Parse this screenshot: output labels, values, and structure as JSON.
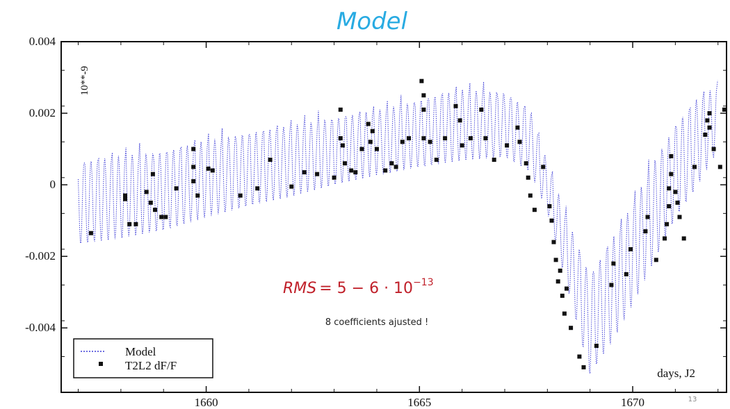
{
  "title": "Model",
  "page_number": "13",
  "chart_data": {
    "type": "line",
    "xlim": [
      1656.6,
      1672.2
    ],
    "ylim": [
      -0.0058,
      0.004
    ],
    "x_ticks": [
      1660,
      1665,
      1670
    ],
    "x_tick_labels": [
      "1660",
      "1665",
      "1670"
    ],
    "y_ticks": [
      0.004,
      0.002,
      0,
      -0.002,
      -0.004
    ],
    "y_tick_labels": [
      "0.004",
      "0.002",
      "0",
      "-0.002",
      "-0.004"
    ],
    "y_unit_annotation": "10**-9",
    "x_axis_annotation": "days, J2",
    "grid": false,
    "legend_position": "bottom-left",
    "series": [
      {
        "name": "Model",
        "style": "dotted line",
        "color": "#3b3bd6",
        "envelope_x": [
          1657.0,
          1658.0,
          1659.0,
          1660.0,
          1661.0,
          1662.0,
          1663.0,
          1664.0,
          1665.0,
          1666.0,
          1667.0,
          1667.6,
          1668.0,
          1668.5,
          1669.0,
          1669.5,
          1670.0,
          1670.5,
          1671.0,
          1671.5,
          1672.0
        ],
        "envelope_lower": [
          -0.0019,
          -0.0017,
          -0.0015,
          -0.0011,
          -0.0008,
          -0.0005,
          -0.0002,
          0.0001,
          0.0003,
          0.0005,
          0.0006,
          0.0002,
          -0.0009,
          -0.0032,
          -0.0056,
          -0.0047,
          -0.0036,
          -0.0024,
          -0.0012,
          -0.0003,
          0.0008
        ],
        "envelope_upper": [
          0.0009,
          0.0011,
          0.0012,
          0.0015,
          0.0017,
          0.0019,
          0.0021,
          0.0023,
          0.0026,
          0.0029,
          0.0028,
          0.0023,
          0.0008,
          -0.0008,
          -0.0022,
          -0.0012,
          -0.0002,
          0.001,
          0.002,
          0.0027,
          0.003
        ]
      },
      {
        "name": "T2L2 dF/F",
        "style": "square markers",
        "color": "#111111",
        "points": [
          [
            1657.3,
            -0.00135
          ],
          [
            1658.1,
            -0.0003
          ],
          [
            1658.1,
            -0.0004
          ],
          [
            1658.2,
            -0.0011
          ],
          [
            1658.35,
            -0.0011
          ],
          [
            1658.6,
            -0.0002
          ],
          [
            1658.7,
            -0.0005
          ],
          [
            1658.75,
            0.0003
          ],
          [
            1658.8,
            -0.0007
          ],
          [
            1658.95,
            -0.0009
          ],
          [
            1659.05,
            -0.0009
          ],
          [
            1659.3,
            -0.0001
          ],
          [
            1659.7,
            0.0005
          ],
          [
            1659.7,
            0.001
          ],
          [
            1659.7,
            0.0001
          ],
          [
            1659.8,
            -0.0003
          ],
          [
            1660.05,
            0.00045
          ],
          [
            1660.15,
            0.0004
          ],
          [
            1660.8,
            -0.0003
          ],
          [
            1661.2,
            -0.0001
          ],
          [
            1661.5,
            0.0007
          ],
          [
            1662.0,
            -5e-05
          ],
          [
            1662.3,
            0.00035
          ],
          [
            1662.6,
            0.0003
          ],
          [
            1663.0,
            0.0002
          ],
          [
            1663.15,
            0.0013
          ],
          [
            1663.15,
            0.0021
          ],
          [
            1663.2,
            0.0011
          ],
          [
            1663.25,
            0.0006
          ],
          [
            1663.4,
            0.0004
          ],
          [
            1663.5,
            0.00035
          ],
          [
            1663.65,
            0.001
          ],
          [
            1663.8,
            0.0017
          ],
          [
            1663.85,
            0.0012
          ],
          [
            1663.9,
            0.0015
          ],
          [
            1664.0,
            0.001
          ],
          [
            1664.2,
            0.0004
          ],
          [
            1664.35,
            0.0006
          ],
          [
            1664.45,
            0.0005
          ],
          [
            1664.6,
            0.0012
          ],
          [
            1664.75,
            0.0013
          ],
          [
            1665.05,
            0.0029
          ],
          [
            1665.1,
            0.0025
          ],
          [
            1665.1,
            0.0021
          ],
          [
            1665.1,
            0.0013
          ],
          [
            1665.25,
            0.0012
          ],
          [
            1665.4,
            0.0007
          ],
          [
            1665.6,
            0.0013
          ],
          [
            1665.85,
            0.0022
          ],
          [
            1665.95,
            0.0018
          ],
          [
            1666.0,
            0.0011
          ],
          [
            1666.2,
            0.0013
          ],
          [
            1666.45,
            0.0021
          ],
          [
            1666.55,
            0.0013
          ],
          [
            1666.75,
            0.0007
          ],
          [
            1667.05,
            0.0011
          ],
          [
            1667.3,
            0.0016
          ],
          [
            1667.35,
            0.0012
          ],
          [
            1667.5,
            0.0006
          ],
          [
            1667.55,
            0.0002
          ],
          [
            1667.6,
            -0.0003
          ],
          [
            1667.7,
            -0.0007
          ],
          [
            1667.9,
            0.0005
          ],
          [
            1668.05,
            -0.0006
          ],
          [
            1668.1,
            -0.001
          ],
          [
            1668.15,
            -0.0016
          ],
          [
            1668.2,
            -0.0021
          ],
          [
            1668.25,
            -0.0027
          ],
          [
            1668.3,
            -0.0024
          ],
          [
            1668.35,
            -0.0031
          ],
          [
            1668.4,
            -0.0036
          ],
          [
            1668.45,
            -0.0029
          ],
          [
            1668.55,
            -0.004
          ],
          [
            1668.75,
            -0.0048
          ],
          [
            1668.85,
            -0.0051
          ],
          [
            1669.15,
            -0.0045
          ],
          [
            1669.5,
            -0.0028
          ],
          [
            1669.55,
            -0.0022
          ],
          [
            1669.85,
            -0.0025
          ],
          [
            1669.95,
            -0.0018
          ],
          [
            1670.3,
            -0.0013
          ],
          [
            1670.35,
            -0.0009
          ],
          [
            1670.55,
            -0.0021
          ],
          [
            1670.75,
            -0.0015
          ],
          [
            1670.8,
            -0.0011
          ],
          [
            1670.85,
            -0.0006
          ],
          [
            1670.85,
            -0.0001
          ],
          [
            1670.9,
            0.0003
          ],
          [
            1670.9,
            0.0008
          ],
          [
            1671.0,
            -0.0002
          ],
          [
            1671.05,
            -0.0005
          ],
          [
            1671.1,
            -0.0009
          ],
          [
            1671.2,
            -0.0015
          ],
          [
            1671.45,
            0.0005
          ],
          [
            1671.7,
            0.0014
          ],
          [
            1671.75,
            0.0018
          ],
          [
            1671.8,
            0.002
          ],
          [
            1671.8,
            0.0016
          ],
          [
            1671.9,
            0.001
          ],
          [
            1672.05,
            0.0005
          ],
          [
            1672.15,
            0.0021
          ]
        ]
      }
    ]
  },
  "annotations": {
    "rms_var": "RMS",
    "rms_eq": "= 5  − 6 · 10",
    "rms_exp": "−13",
    "note": "8 coefficients ajusted !"
  },
  "legend": {
    "items": [
      {
        "label": "Model",
        "marker": "dotted"
      },
      {
        "label": "T2L2 dF/F",
        "marker": "square"
      }
    ]
  }
}
